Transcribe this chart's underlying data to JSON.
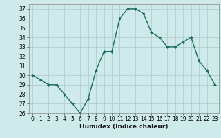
{
  "x": [
    0,
    1,
    2,
    3,
    4,
    5,
    6,
    7,
    8,
    9,
    10,
    11,
    12,
    13,
    14,
    15,
    16,
    17,
    18,
    19,
    20,
    21,
    22,
    23
  ],
  "y": [
    30.0,
    29.5,
    29.0,
    29.0,
    28.0,
    27.0,
    26.0,
    27.5,
    30.5,
    32.5,
    32.5,
    36.0,
    37.0,
    37.0,
    36.5,
    34.5,
    34.0,
    33.0,
    33.0,
    33.5,
    34.0,
    31.5,
    30.5,
    29.0
  ],
  "line_color": "#1a6b5a",
  "marker": "D",
  "marker_size": 2,
  "linewidth": 1.0,
  "bg_color": "#ceeaea",
  "grid_color": "#b0cece",
  "xlabel": "Humidex (Indice chaleur)",
  "xlim": [
    -0.5,
    23.5
  ],
  "ylim": [
    26,
    37.5
  ],
  "yticks": [
    26,
    27,
    28,
    29,
    30,
    31,
    32,
    33,
    34,
    35,
    36,
    37
  ],
  "xticks": [
    0,
    1,
    2,
    3,
    4,
    5,
    6,
    7,
    8,
    9,
    10,
    11,
    12,
    13,
    14,
    15,
    16,
    17,
    18,
    19,
    20,
    21,
    22,
    23
  ],
  "tick_fontsize": 5.5,
  "xlabel_fontsize": 6.5
}
